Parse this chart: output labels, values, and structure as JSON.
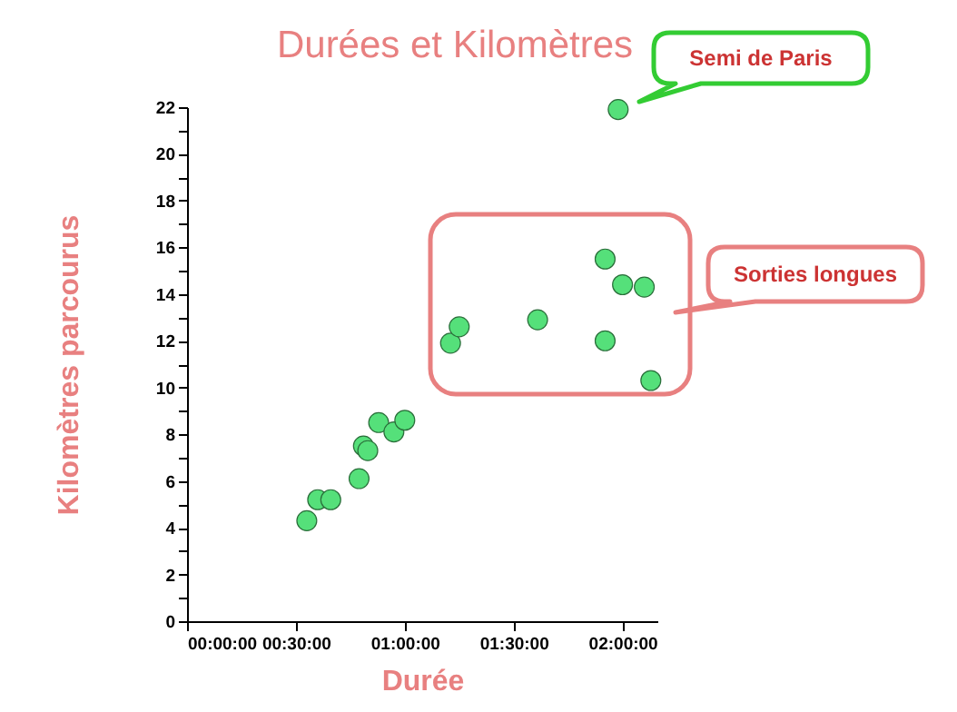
{
  "chart_data": {
    "type": "scatter",
    "title": "Durées et Kilomètres",
    "xlabel": "Durée",
    "ylabel": "Kilomètres parcourus",
    "x": [
      0.55,
      0.6,
      0.66,
      0.79,
      0.81,
      0.83,
      0.88,
      0.95,
      1.0,
      1.21,
      1.25,
      1.61,
      1.92,
      2.0,
      2.1,
      1.92,
      2.13,
      1.98
    ],
    "series": [
      {
        "color": "#55e07a",
        "values": [
          4.3,
          5.2,
          5.2,
          6.1,
          7.5,
          7.3,
          8.5,
          8.1,
          8.6,
          11.9,
          12.6,
          12.9,
          15.5,
          14.4,
          14.3,
          12.0,
          10.3,
          21.9
        ]
      }
    ],
    "xlim": [
      0,
      2.16
    ],
    "ylim": [
      0,
      22
    ],
    "xticks": [
      {
        "value": 0,
        "label": "00:00:00"
      },
      {
        "value": 0.5,
        "label": "00:30:00"
      },
      {
        "value": 1,
        "label": "01:00:00"
      },
      {
        "value": 1.5,
        "label": "01:30:00"
      },
      {
        "value": 2,
        "label": "02:00:00"
      }
    ],
    "yticks": [
      0,
      {
        "value": 1,
        "label": null
      },
      2,
      {
        "value": 3,
        "label": null
      },
      4,
      {
        "value": 5,
        "label": null
      },
      6,
      {
        "value": 7,
        "label": null
      },
      8,
      {
        "value": 9,
        "label": null
      },
      10,
      {
        "value": 11,
        "label": null
      },
      12,
      {
        "value": 13,
        "label": null
      },
      14,
      {
        "value": 15,
        "label": null
      },
      16,
      {
        "value": 17,
        "label": null
      },
      18,
      {
        "value": 19,
        "label": null
      },
      20,
      {
        "value": 21,
        "label": null
      },
      22
    ],
    "grid": false,
    "legend": false,
    "marker": "circle",
    "annotations": [
      "Semi de Paris",
      "Sorties longues"
    ]
  }
}
